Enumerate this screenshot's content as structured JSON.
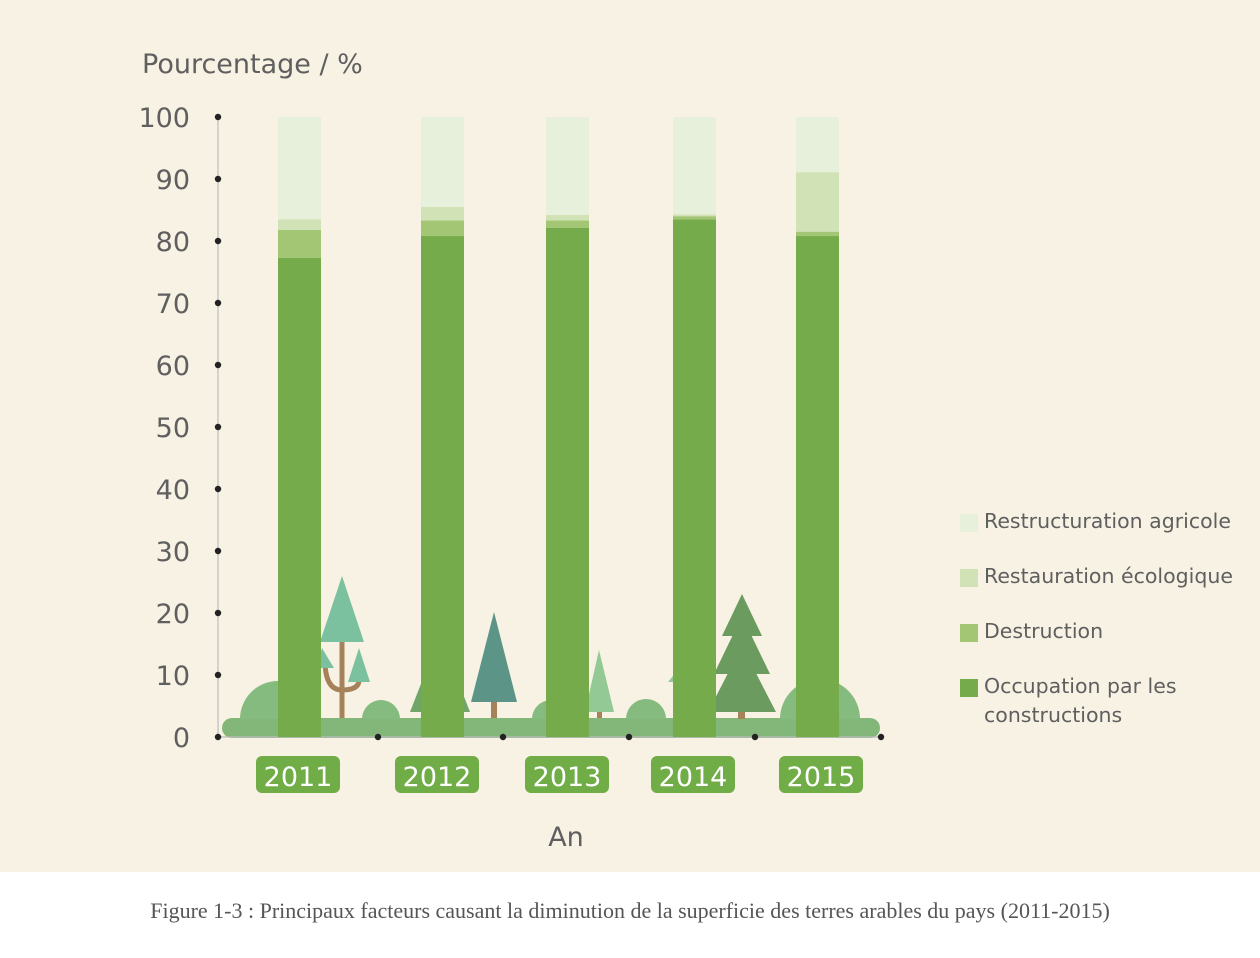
{
  "chart_data": {
    "type": "bar",
    "stacked": true,
    "ylabel": "Pourcentage / %",
    "xlabel": "An",
    "categories": [
      "2011",
      "2012",
      "2013",
      "2014",
      "2015"
    ],
    "ylim": [
      0,
      100
    ],
    "yticks": [
      0,
      10,
      20,
      30,
      40,
      50,
      60,
      70,
      80,
      90,
      100
    ],
    "series": [
      {
        "name": "Occupation par les constructions",
        "color": "#76ab4c",
        "values": [
          77.3,
          80.8,
          82.1,
          83.5,
          80.8
        ]
      },
      {
        "name": "Destruction",
        "color": "#a2c673",
        "values": [
          4.5,
          2.5,
          1.2,
          0.5,
          0.7
        ]
      },
      {
        "name": "Restauration écologique",
        "color": "#d0e2b6",
        "values": [
          1.7,
          2.2,
          0.9,
          0.3,
          9.6
        ]
      },
      {
        "name": "Restructuration agricole",
        "color": "#e6f0db",
        "values": [
          16.5,
          14.5,
          15.8,
          15.7,
          8.9
        ]
      }
    ],
    "legend_position": "right",
    "grid": false
  },
  "caption": "Figure 1-3 : Principaux facteurs causant la diminution de la superficie des terres arables du pays (2011-2015)"
}
